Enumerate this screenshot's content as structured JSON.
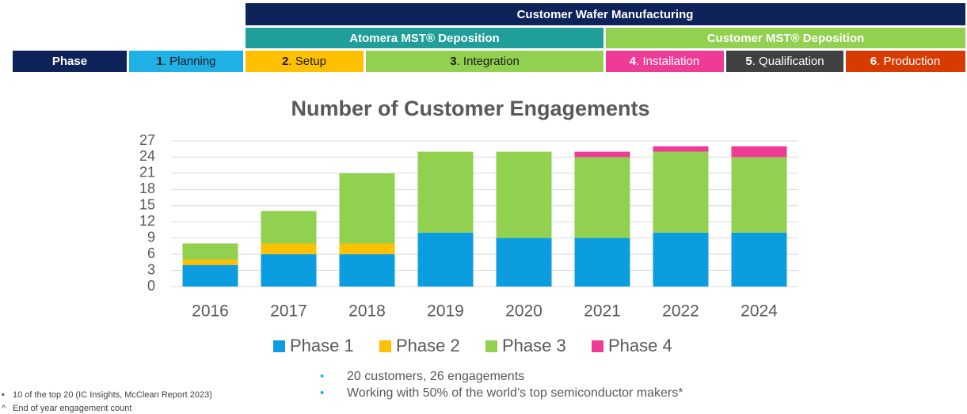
{
  "header": {
    "title": "Customer Wafer Manufacturing",
    "groups": [
      "Atomera MST® Deposition",
      "Customer MST® Deposition"
    ],
    "phase_label": "Phase",
    "phases": [
      {
        "number": "1",
        "label": ". Planning"
      },
      {
        "number": "2",
        "label": ". Setup"
      },
      {
        "number": "3",
        "label": ". Integration"
      },
      {
        "number": "4",
        "label": ". Installation"
      },
      {
        "number": "5",
        "label": ". Qualification"
      },
      {
        "number": "6",
        "label": ". Production"
      }
    ]
  },
  "chart_data": {
    "type": "stacked-bar",
    "title": "Number of Customer Engagements",
    "categories": [
      "2016",
      "2017",
      "2018",
      "2019",
      "2020",
      "2021",
      "2022",
      "2024"
    ],
    "series": [
      {
        "name": "Phase 1",
        "color": "#0b9de0",
        "values": [
          4,
          6,
          6,
          10,
          9,
          9,
          10,
          10
        ]
      },
      {
        "name": "Phase 2",
        "color": "#ffc000",
        "values": [
          1,
          2,
          2,
          0,
          0,
          0,
          0,
          0
        ]
      },
      {
        "name": "Phase 3",
        "color": "#92d050",
        "values": [
          3,
          6,
          13,
          15,
          16,
          15,
          15,
          14
        ]
      },
      {
        "name": "Phase 4",
        "color": "#ee3c96",
        "values": [
          0,
          0,
          0,
          0,
          0,
          1,
          1,
          2
        ]
      }
    ],
    "ylim": [
      0,
      27
    ],
    "yticks": [
      0,
      3,
      6,
      9,
      12,
      15,
      18,
      21,
      24,
      27
    ],
    "grid": true
  },
  "bullets": [
    "20 customers, 26 engagements",
    "Working with 50% of the world’s top semiconductor makers*"
  ],
  "footnotes": [
    {
      "marker": "•",
      "text": "10 of the top 20 (IC Insights, McClean Report 2023)"
    },
    {
      "marker": "^",
      "text": "End of year engagement count"
    }
  ]
}
